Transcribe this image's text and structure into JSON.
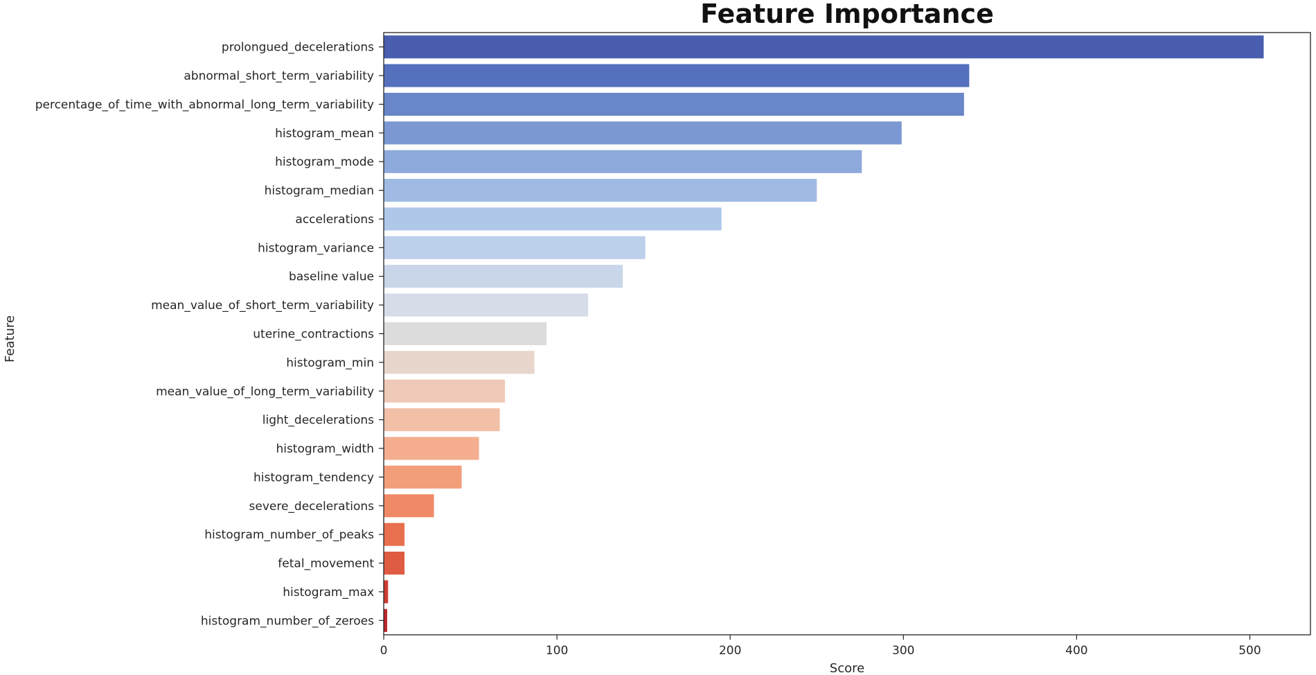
{
  "chart_data": {
    "type": "bar",
    "orientation": "horizontal",
    "title": "Feature Importance",
    "xlabel": "Score",
    "ylabel": "Feature",
    "xlim": [
      0,
      535
    ],
    "xticks": [
      0,
      100,
      200,
      300,
      400,
      500
    ],
    "grid": false,
    "legend": "none",
    "palette": "coolwarm",
    "categories": [
      "prolongued_decelerations",
      "abnormal_short_term_variability",
      "percentage_of_time_with_abnormal_long_term_variability",
      "histogram_mean",
      "histogram_mode",
      "histogram_median",
      "accelerations",
      "histogram_variance",
      "baseline value",
      "mean_value_of_short_term_variability",
      "uterine_contractions",
      "histogram_min",
      "mean_value_of_long_term_variability",
      "light_decelerations",
      "histogram_width",
      "histogram_tendency",
      "severe_decelerations",
      "histogram_number_of_peaks",
      "fetal_movement",
      "histogram_max",
      "histogram_number_of_zeroes"
    ],
    "values": [
      508,
      338,
      335,
      299,
      276,
      250,
      195,
      151,
      138,
      118,
      94,
      87,
      70,
      67,
      55,
      45,
      29,
      12,
      12,
      2.5,
      2
    ],
    "colors": [
      "#4a5eaf",
      "#5570bd",
      "#6886c8",
      "#7b98d2",
      "#8ea9dc",
      "#9fbbe3",
      "#afc7e9",
      "#bccfeb",
      "#c9d6ea",
      "#d6dde8",
      "#dcdcdc",
      "#e8d5cc",
      "#efc9b7",
      "#f2bfa7",
      "#f4ae8f",
      "#f39e7b",
      "#f08a66",
      "#e9704f",
      "#df5c43",
      "#cd3a33",
      "#c0282c"
    ]
  }
}
